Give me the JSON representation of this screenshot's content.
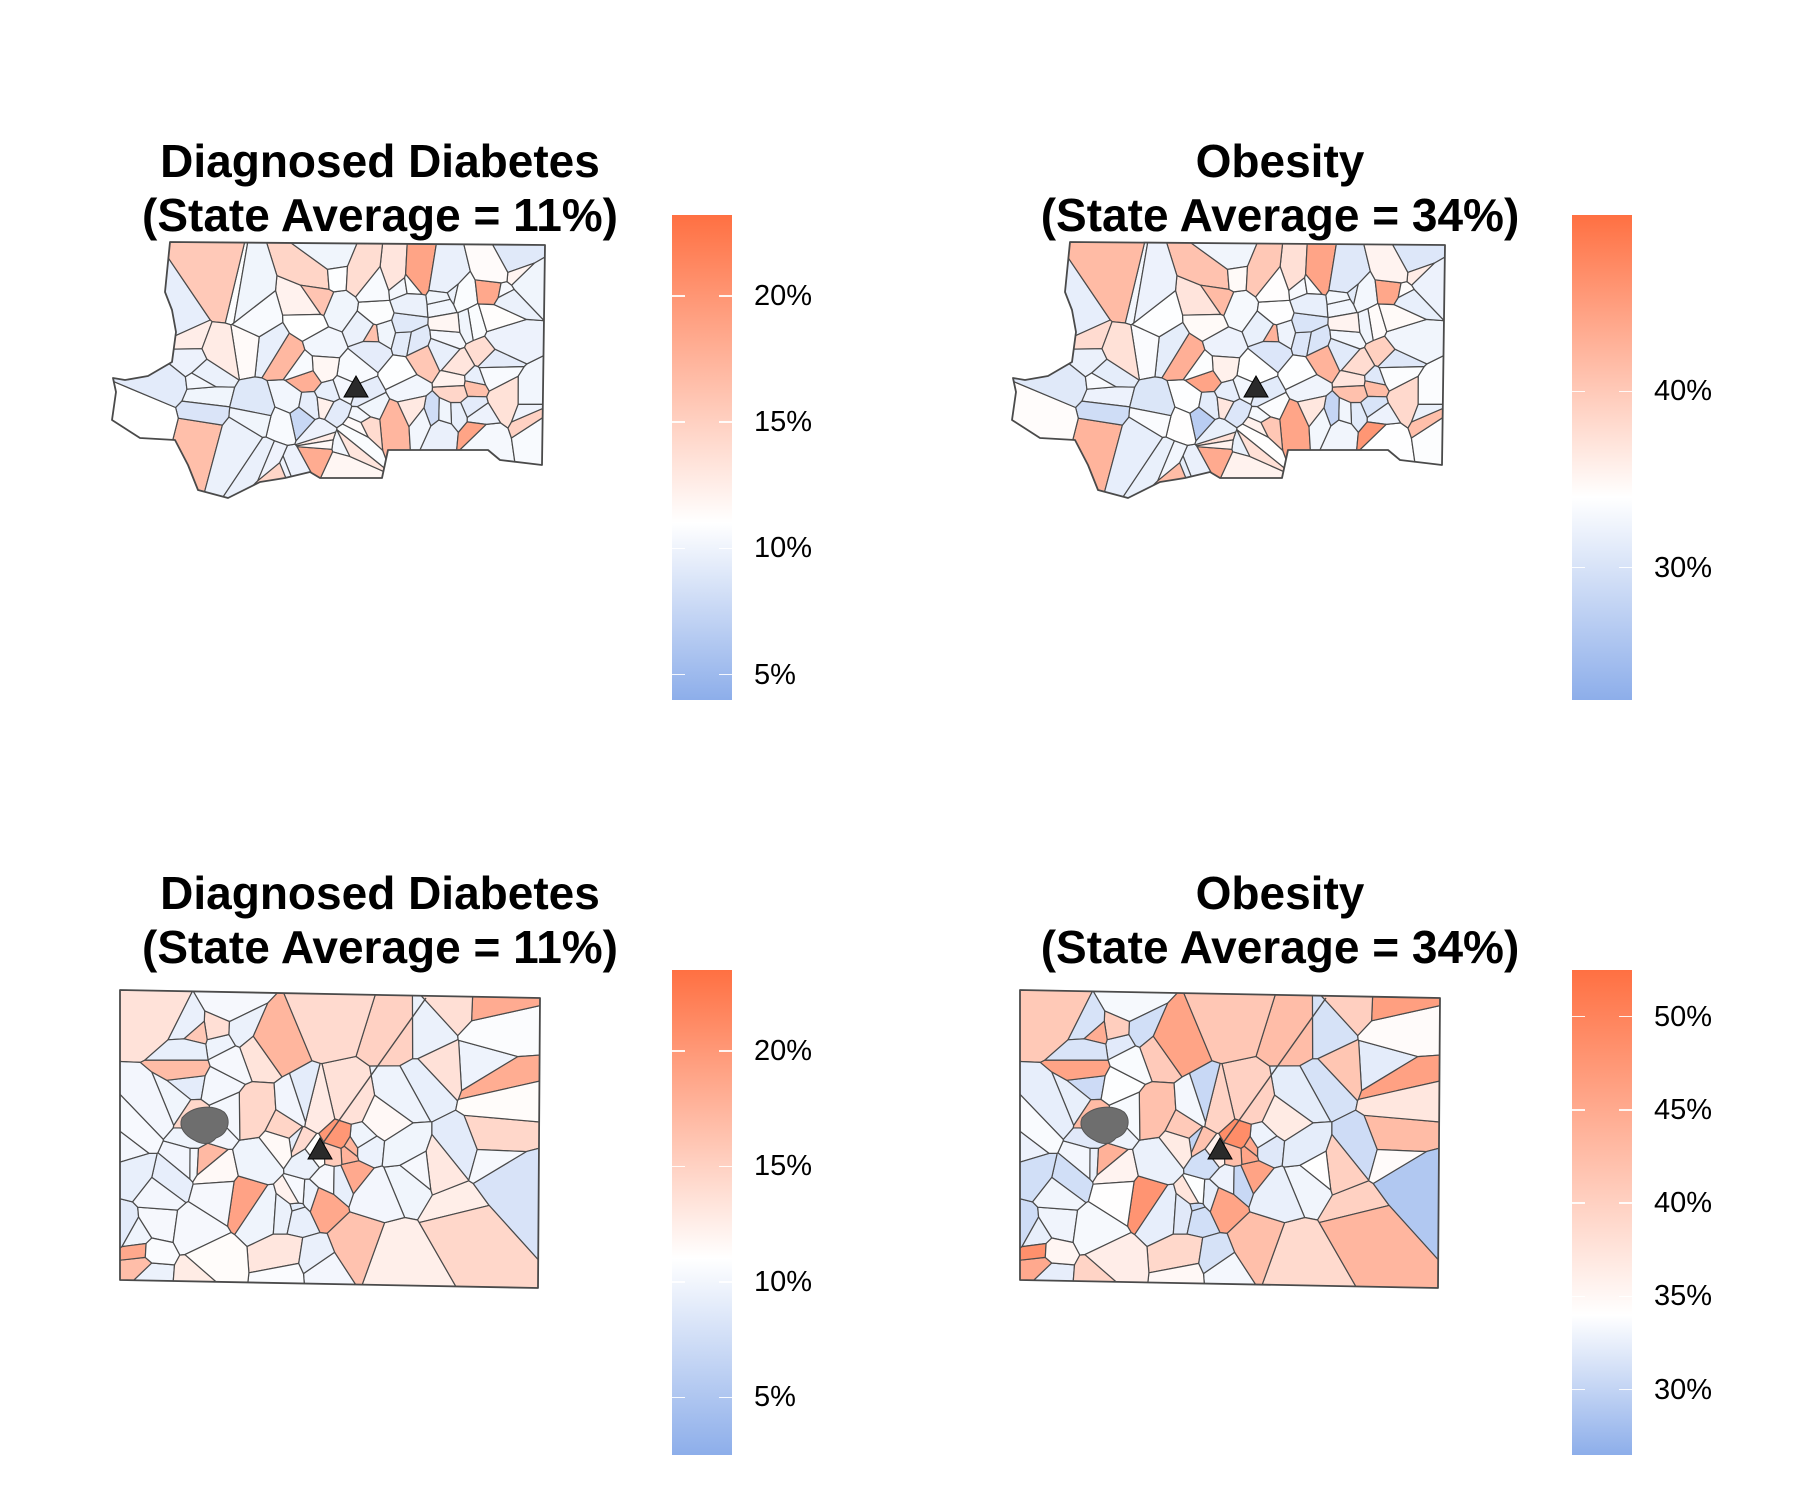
{
  "panels": [
    {
      "title_line1": "Diagnosed Diabetes",
      "title_line2": "(State Average = 11%)",
      "metric": "Diagnosed Diabetes",
      "state_average": "11%",
      "region": "top",
      "legend": {
        "min": 4,
        "max": 23.2,
        "ticks": [
          {
            "label": "20%",
            "value": 20
          },
          {
            "label": "15%",
            "value": 15
          },
          {
            "label": "10%",
            "value": 10
          },
          {
            "label": "5%",
            "value": 5
          }
        ]
      },
      "tract_values": [
        9.6,
        9.8,
        10.8,
        10.2,
        10.4,
        13.5,
        12.6,
        10.7,
        9.5,
        13.2,
        12.1,
        11.4,
        11.8,
        10.1,
        9.6,
        9.4,
        9.7,
        10.6,
        10.1,
        9.9,
        9.9,
        10.1,
        9.6,
        10.2,
        9.9,
        9.3,
        15.8,
        16.5,
        17.2,
        16.2,
        16.4,
        15.6,
        14.6,
        16.0,
        17.8,
        18.8,
        18.8,
        18.4,
        9.1,
        9.3,
        7.6,
        9.8,
        9.6,
        10.1,
        10.0,
        9.4,
        9.1,
        10.2,
        10.1,
        10.6,
        10.3,
        10.6,
        10.2,
        9.0,
        9.8,
        9.7,
        13.9,
        14.1,
        14.6,
        17.1,
        18.1,
        9.4,
        10.6,
        9.1,
        9.8,
        10.3,
        10.1,
        12.5,
        10.2,
        10.9,
        13.9,
        14.9,
        14.5,
        10.1,
        10.2,
        8.1,
        10.7,
        10.1,
        9.5,
        10.3,
        13.2,
        12.3,
        11.7,
        11.8,
        9.9,
        8.7,
        13.2,
        9.3,
        10.8,
        11.0,
        10.6,
        10.7,
        9.6,
        10.5,
        10.1,
        12.9,
        10.1,
        9.7,
        9.3,
        10.3,
        12.1,
        10.6,
        9.9,
        11.2,
        12.7,
        10.2,
        10.9,
        10.7,
        10.1,
        11.0,
        11.9,
        11.4,
        11.5,
        11.3,
        10.3,
        10.6,
        10.0,
        9.8,
        9.8,
        10.0,
        10.5,
        10.5
      ]
    },
    {
      "title_line1": "Obesity",
      "title_line2": "(State Average = 34%)",
      "metric": "Obesity",
      "state_average": "34%",
      "region": "top",
      "legend": {
        "min": 22.5,
        "max": 50,
        "ticks": [
          {
            "label": "40%",
            "value": 40
          },
          {
            "label": "30%",
            "value": 30
          }
        ]
      },
      "tract_values": [
        31.4,
        31.1,
        32.8,
        31.8,
        33.9,
        38.2,
        37.5,
        32.8,
        31.6,
        37.5,
        37.0,
        33.5,
        35.4,
        33.6,
        30.8,
        30.5,
        32.6,
        33.7,
        33.1,
        32.2,
        31.8,
        32.3,
        31.0,
        32.5,
        31.9,
        30.5,
        42.5,
        42.4,
        44.1,
        42.5,
        41.5,
        41.6,
        40.8,
        41.6,
        44.2,
        45.8,
        44.2,
        43.9,
        30.2,
        30.1,
        26.9,
        31.4,
        31.1,
        32.6,
        31.5,
        30.8,
        30.2,
        32.2,
        32.2,
        33.8,
        32.7,
        34.0,
        33.8,
        30.4,
        31.8,
        30.8,
        39.3,
        40.3,
        41.5,
        42.9,
        43.5,
        31.1,
        33.6,
        30.6,
        31.6,
        33.1,
        32.6,
        38.0,
        33.6,
        34.6,
        40.2,
        41.2,
        40.9,
        32.2,
        32.7,
        28.1,
        34.4,
        32.6,
        31.3,
        33.3,
        37.9,
        36.8,
        35.6,
        35.3,
        32.0,
        29.2,
        37.5,
        30.5,
        33.9,
        34.3,
        34.1,
        34.1,
        31.6,
        34.3,
        33.5,
        36.7,
        32.8,
        31.8,
        30.9,
        33.3,
        36.9,
        34.2,
        32.6,
        34.6,
        37.4,
        32.8,
        33.8,
        33.6,
        32.2,
        34.6,
        36.1,
        35.6,
        35.4,
        35.3,
        32.8,
        33.7,
        32.0,
        31.7,
        31.7,
        32.7,
        32.6,
        32.9
      ]
    },
    {
      "title_line1": "Diagnosed Diabetes",
      "title_line2": "(State Average = 11%)",
      "metric": "Diagnosed Diabetes",
      "state_average": "11%",
      "region": "bottom",
      "legend": {
        "min": 2.5,
        "max": 23.5,
        "ticks": [
          {
            "label": "20%",
            "value": 20
          },
          {
            "label": "15%",
            "value": 15
          },
          {
            "label": "10%",
            "value": 10
          },
          {
            "label": "5%",
            "value": 5
          }
        ]
      },
      "tract_values": [
        9.8,
        9.3,
        9.7,
        10.3,
        10.1,
        11.5,
        11.6,
        11.1,
        9.0,
        9.6,
        9.7,
        9.3,
        9.0,
        9.2,
        8.9,
        9.7,
        9.5,
        9.9,
        9.8,
        9.5,
        10.3,
        13.8,
        13.5,
        9.6,
        13.6,
        14.7,
        12.8,
        13.6,
        14.5,
        12.5,
        9.8,
        9.5,
        9.0,
        9.9,
        9.6,
        9.3,
        9.3,
        8.1,
        9.9,
        10.2,
        9.1,
        9.4,
        10.7,
        13.2,
        14.2,
        17.1,
        18.3,
        19.1,
        18.6,
        18.5,
        17.6,
        10.1,
        8.9,
        9.8,
        9.8,
        13.8,
        11.5,
        13.4,
        12.4,
        14.5,
        14.5,
        15.8,
        18.2,
        20.1,
        15.0,
        10.3,
        10.1,
        10.1,
        10.3,
        10.2,
        10.0,
        13.0,
        14.5,
        16.7,
        18.6,
        16.9,
        17.4,
        17.5,
        16.3,
        15.5,
        14.2,
        10.6,
        12.7,
        10.6,
        11.3,
        11.3,
        10.2,
        10.0,
        10.4,
        10.1,
        9.4,
        10.3,
        10.4,
        10.3,
        9.3,
        12.1,
        9.5,
        10.1,
        10.3,
        10.3,
        10.3
      ]
    },
    {
      "title_line1": "Obesity",
      "title_line2": "(State Average = 34%)",
      "metric": "Obesity",
      "state_average": "34%",
      "region": "bottom",
      "legend": {
        "min": 26.5,
        "max": 52.5,
        "ticks": [
          {
            "label": "50%",
            "value": 50
          },
          {
            "label": "45%",
            "value": 45
          },
          {
            "label": "40%",
            "value": 40
          },
          {
            "label": "35%",
            "value": 35
          },
          {
            "label": "30%",
            "value": 30
          }
        ]
      },
      "tract_values": [
        32.0,
        31.3,
        32.1,
        32.8,
        32.8,
        35.5,
        36.6,
        35.9,
        30.7,
        31.9,
        32.3,
        30.4,
        30.6,
        31.0,
        30.8,
        32.2,
        31.3,
        33.1,
        32.4,
        32.0,
        33.4,
        40.4,
        41.0,
        32.4,
        39.9,
        40.9,
        39.7,
        41.4,
        42.7,
        40.0,
        32.9,
        31.0,
        30.4,
        32.3,
        32.4,
        31.0,
        31.0,
        28.9,
        32.5,
        32.6,
        30.0,
        31.4,
        34.5,
        39.1,
        41.9,
        44.1,
        46.4,
        47.8,
        45.8,
        45.9,
        45.6,
        32.4,
        30.8,
        32.7,
        32.5,
        40.2,
        36.6,
        40.8,
        38.8,
        42.0,
        43.4,
        44.6,
        46.1,
        48.8,
        42.5,
        33.0,
        33.3,
        32.9,
        33.4,
        33.5,
        33.2,
        40.1,
        42.8,
        45.1,
        48.4,
        45.8,
        45.8,
        45.2,
        42.3,
        42.3,
        41.2,
        35.2,
        39.6,
        34.9,
        36.3,
        37.1,
        33.9,
        33.3,
        33.6,
        33.1,
        31.3,
        34.1,
        33.9,
        33.6,
        31.5,
        37.4,
        31.0,
        32.6,
        34.0,
        34.5,
        34.0
      ]
    }
  ]
}
